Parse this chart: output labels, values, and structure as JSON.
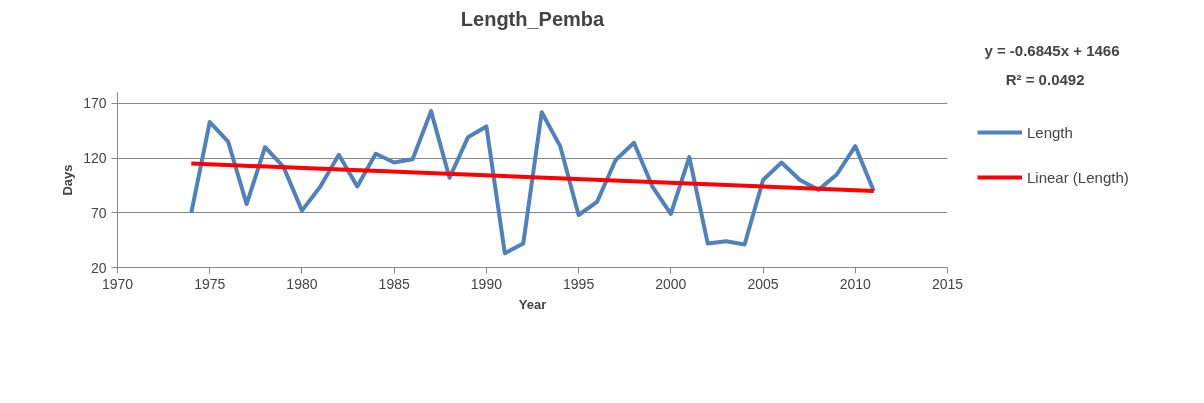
{
  "chart_data": {
    "type": "line",
    "title": "Length_Pemba",
    "xlabel": "Year",
    "ylabel": "Days",
    "x": [
      1974,
      1975,
      1976,
      1977,
      1978,
      1979,
      1980,
      1981,
      1982,
      1983,
      1984,
      1985,
      1986,
      1987,
      1988,
      1989,
      1990,
      1991,
      1992,
      1993,
      1994,
      1995,
      1996,
      1997,
      1998,
      1999,
      2000,
      2001,
      2002,
      2003,
      2004,
      2005,
      2006,
      2007,
      2008,
      2009,
      2010,
      2011
    ],
    "series": [
      {
        "name": "Length",
        "color": "#4f81bd",
        "values": [
          70,
          153,
          135,
          78,
          130,
          112,
          72,
          94,
          123,
          94,
          124,
          116,
          119,
          163,
          102,
          139,
          149,
          33,
          42,
          162,
          131,
          68,
          80,
          118,
          134,
          94,
          69,
          121,
          42,
          44,
          41,
          100,
          116,
          100,
          91,
          105,
          131,
          90
        ]
      },
      {
        "name": "Linear (Length)",
        "color": "#ff0000",
        "x": [
          1974,
          2011
        ],
        "values": [
          115,
          90
        ]
      }
    ],
    "xlim": [
      1970,
      2015
    ],
    "xticks": [
      1970,
      1975,
      1980,
      1985,
      1990,
      1995,
      2000,
      2005,
      2010,
      2015
    ],
    "ylim": [
      20,
      180
    ],
    "yticks": [
      20,
      70,
      120,
      170
    ],
    "grid": "y",
    "legend": "right",
    "marker": "none",
    "line_style": "solid",
    "annotations": [
      "y = -0.6845x + 1466",
      "R² = 0.0492"
    ]
  }
}
